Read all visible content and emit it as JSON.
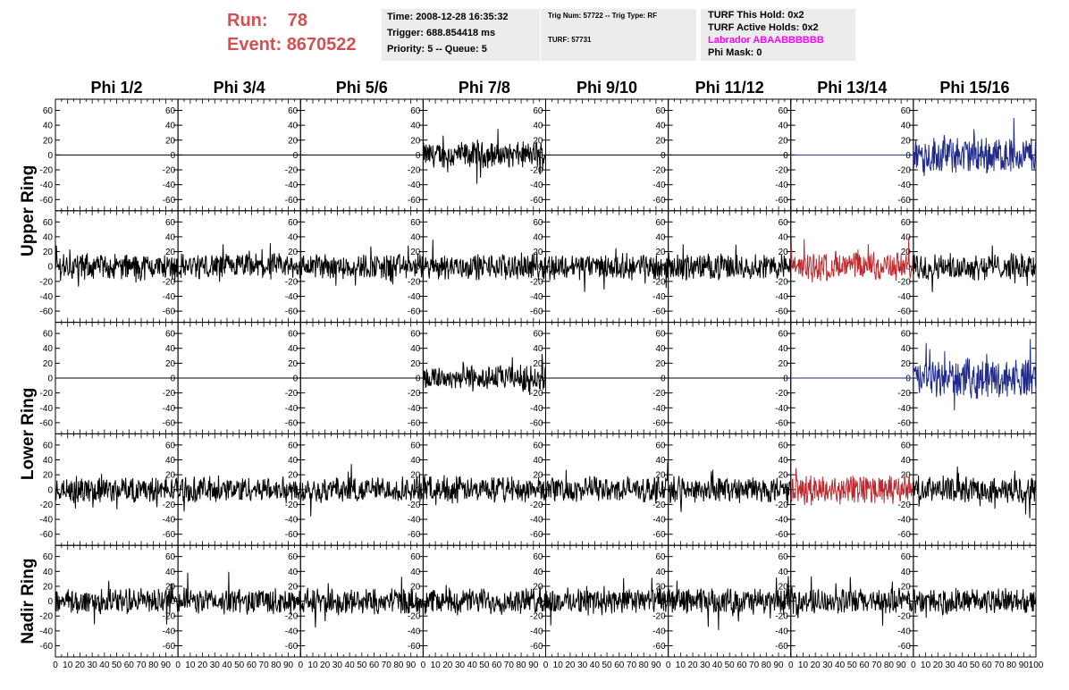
{
  "header": {
    "run_label": "Run:",
    "run_value": "78",
    "event_label": "Event:",
    "event_value": "8670522"
  },
  "info1": {
    "time": "Time: 2008-12-28 16:35:32",
    "trigger": "Trigger: 688.854418 ms",
    "priority": "Priority: 5 -- Queue: 5"
  },
  "info2": {
    "trig": "Trig Num: 57722 -- Trig Type: RF",
    "turf": "TURF: 57731"
  },
  "info3": {
    "this_hold": "TURF This Hold: 0x2",
    "active_holds": "TURF Active Holds: 0x2",
    "labrador": "Labrador ABAABBBBBB",
    "phi_mask": "Phi Mask: 0"
  },
  "colors": {
    "run_text": "#d35050",
    "labrador_text": "#ff00ff",
    "trace_default": "#000000",
    "trace_red": "#c0282d",
    "trace_blue": "#1f2a8c"
  },
  "chart_data": {
    "type": "line",
    "columns": [
      "Phi 1/2",
      "Phi 3/4",
      "Phi 5/6",
      "Phi 7/8",
      "Phi 9/10",
      "Phi 11/12",
      "Phi 13/14",
      "Phi 15/16"
    ],
    "ring_labels": [
      "Upper Ring",
      "Lower Ring",
      "Nadir Ring"
    ],
    "rows": 5,
    "ylim": [
      -75,
      75
    ],
    "y_ticks": [
      -60,
      -40,
      -20,
      0,
      20,
      40,
      60
    ],
    "xlim": [
      0,
      100
    ],
    "x_ticks": [
      0,
      10,
      20,
      30,
      40,
      50,
      60,
      70,
      80,
      90,
      100
    ],
    "panels": [
      [
        "flat",
        "flat",
        "flat",
        "noise",
        "flat",
        "flat",
        "flat-blue",
        "noise-blue"
      ],
      [
        "noise",
        "noise",
        "noise",
        "noise",
        "noise",
        "noise",
        "noise-red",
        "noise"
      ],
      [
        "flat",
        "flat",
        "flat",
        "noise",
        "flat",
        "flat",
        "flat-blue",
        "noise-blue"
      ],
      [
        "noise",
        "noise",
        "noise",
        "noise",
        "noise",
        "noise",
        "noise-red",
        "noise"
      ],
      [
        "noise",
        "noise",
        "noise",
        "noise",
        "noise",
        "noise",
        "noise",
        "noise"
      ]
    ]
  }
}
